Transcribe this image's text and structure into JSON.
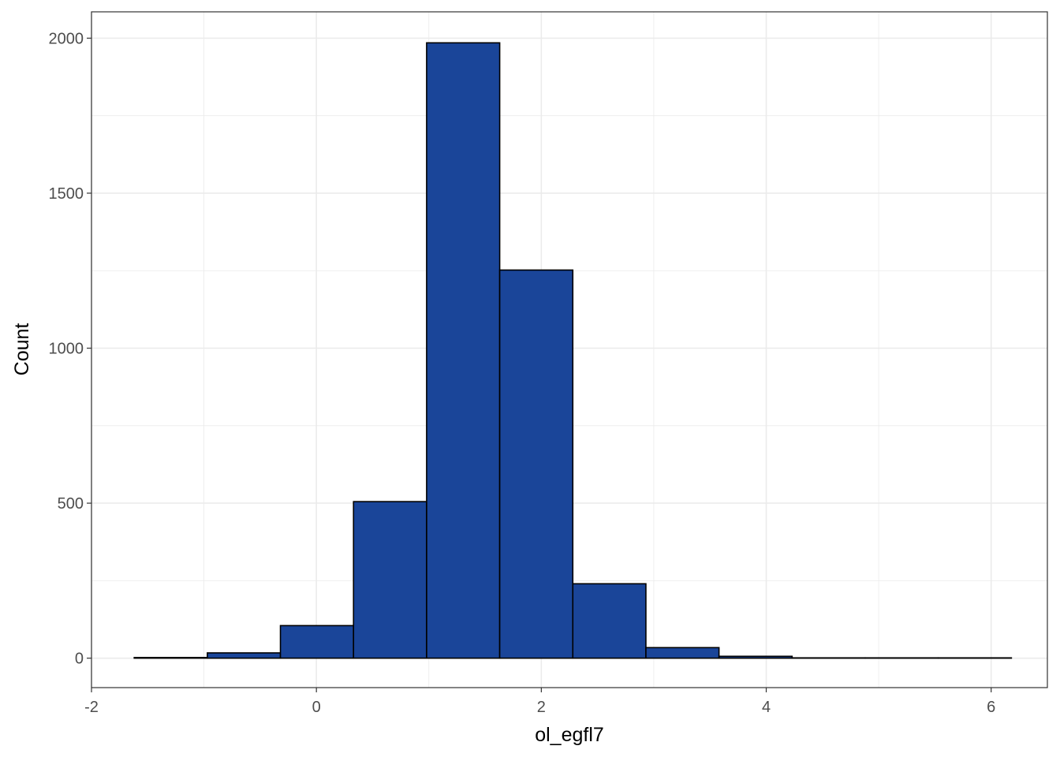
{
  "chart_data": {
    "type": "bar",
    "subtype": "histogram",
    "title": "",
    "xlabel": "ol_egfl7",
    "ylabel": "Count",
    "xlim": [
      -2,
      6.5
    ],
    "ylim": [
      -95,
      2085
    ],
    "x_ticks": [
      -2,
      0,
      2,
      4,
      6
    ],
    "x_tick_labels": [
      "-2",
      "0",
      "2",
      "4",
      "6"
    ],
    "y_ticks": [
      0,
      500,
      1000,
      1500,
      2000
    ],
    "y_tick_labels": [
      "0",
      "500",
      "1000",
      "1500",
      "2000"
    ],
    "bins": [
      {
        "x0": -1.62,
        "x1": -0.97,
        "count": 2
      },
      {
        "x0": -0.97,
        "x1": -0.32,
        "count": 17
      },
      {
        "x0": -0.32,
        "x1": 0.33,
        "count": 105
      },
      {
        "x0": 0.33,
        "x1": 0.98,
        "count": 505
      },
      {
        "x0": 0.98,
        "x1": 1.63,
        "count": 1985
      },
      {
        "x0": 1.63,
        "x1": 2.28,
        "count": 1252
      },
      {
        "x0": 2.28,
        "x1": 2.93,
        "count": 240
      },
      {
        "x0": 2.93,
        "x1": 3.58,
        "count": 34
      },
      {
        "x0": 3.58,
        "x1": 4.23,
        "count": 6
      },
      {
        "x0": 4.23,
        "x1": 4.88,
        "count": 1
      },
      {
        "x0": 4.88,
        "x1": 5.53,
        "count": 1
      },
      {
        "x0": 5.53,
        "x1": 6.18,
        "count": 1
      }
    ],
    "fill_color": "#1a4599",
    "edge_color": "#000000",
    "grid": true,
    "legend": "none"
  }
}
